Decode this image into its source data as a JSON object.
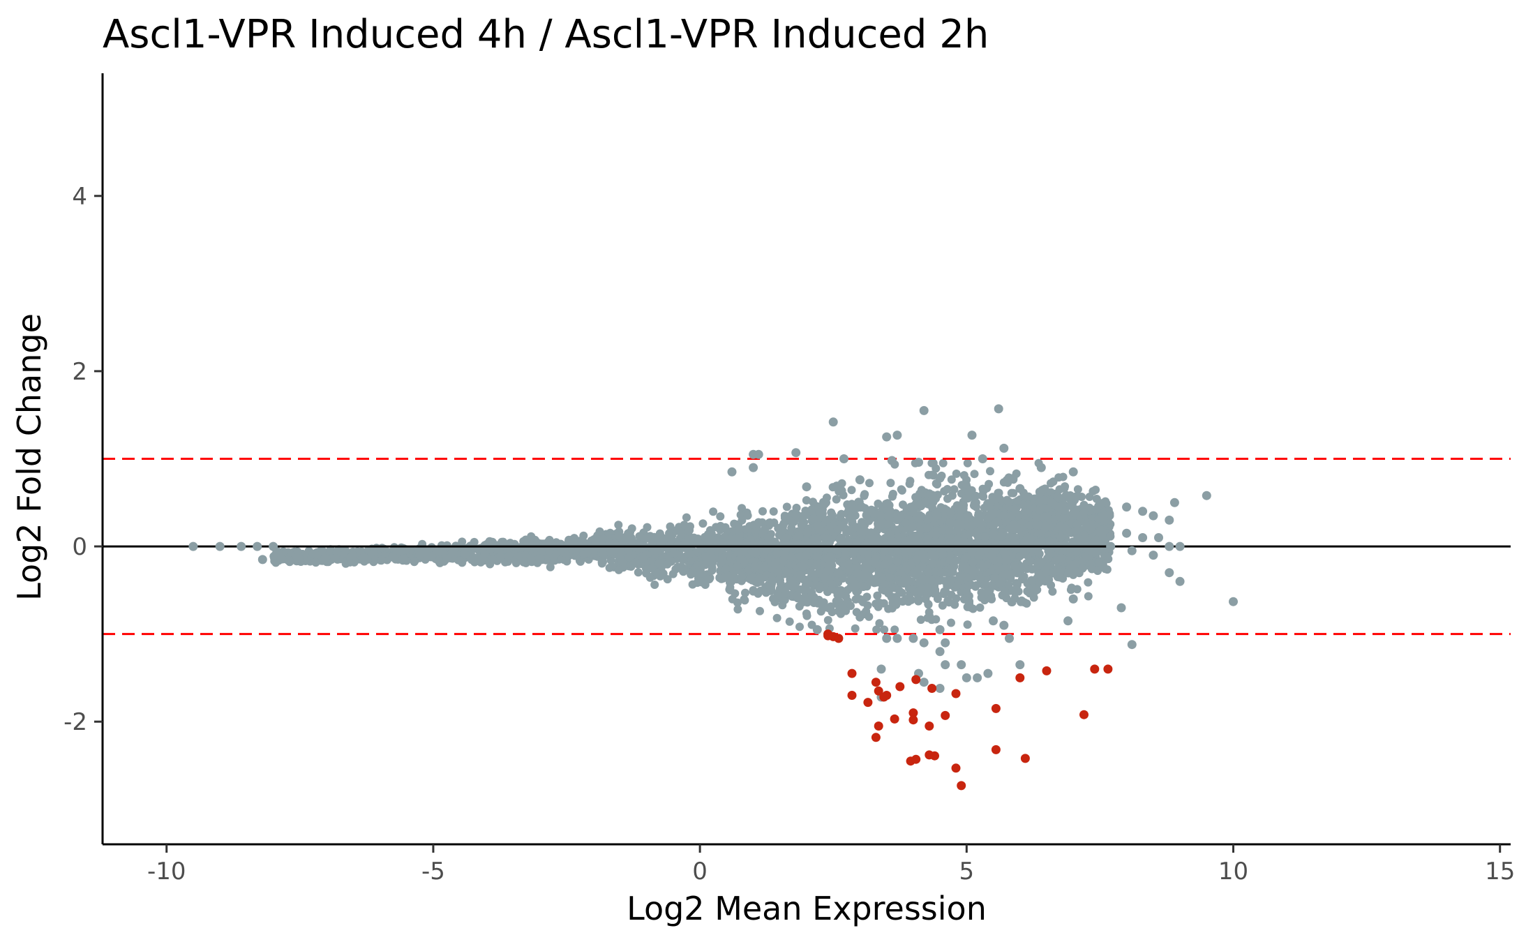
{
  "chart_data": {
    "type": "scatter",
    "title": "Ascl1-VPR Induced 4h / Ascl1-VPR Induced 2h",
    "xlabel": "Log2 Mean Expression",
    "ylabel": "Log2 Fold Change",
    "xlim": [
      -11.2,
      15.2
    ],
    "ylim": [
      -3.4,
      5.4
    ],
    "x_ticks": [
      -10,
      -5,
      0,
      5,
      10,
      15
    ],
    "x_tick_labels": [
      "-10",
      "-5",
      "0",
      "5",
      "10",
      "15"
    ],
    "y_ticks": [
      -2,
      0,
      2,
      4
    ],
    "y_tick_labels": [
      "-2",
      "0",
      "2",
      "4"
    ],
    "grid": false,
    "legend": "none",
    "colors": {
      "not_significant": "#8b9ea4",
      "significant_down": "#c8250f",
      "threshold_line": "#ff0000",
      "zero_line": "#000000"
    },
    "reference_lines": [
      {
        "y": 0,
        "style": "solid"
      },
      {
        "y": 1,
        "style": "dashed"
      },
      {
        "y": -1,
        "style": "dashed"
      }
    ],
    "series": [
      {
        "group": "not_significant",
        "points": [
          [
            -9.5,
            0.0
          ],
          [
            -9.0,
            0.0
          ],
          [
            -8.6,
            0.0
          ],
          [
            -8.3,
            0.0
          ],
          [
            -8.2,
            -0.15
          ],
          [
            -8.0,
            0.0
          ],
          [
            2.5,
            1.42
          ],
          [
            3.5,
            1.25
          ],
          [
            3.7,
            1.27
          ],
          [
            4.2,
            1.55
          ],
          [
            5.1,
            1.27
          ],
          [
            5.6,
            1.57
          ],
          [
            5.7,
            1.12
          ],
          [
            1.0,
            1.05
          ],
          [
            1.1,
            1.05
          ],
          [
            1.8,
            1.07
          ],
          [
            2.7,
            1.0
          ],
          [
            3.6,
            0.98
          ],
          [
            4.1,
            0.96
          ],
          [
            5.3,
            1.0
          ],
          [
            6.4,
            0.9
          ],
          [
            7.0,
            0.85
          ],
          [
            1.0,
            0.9
          ],
          [
            0.6,
            0.85
          ],
          [
            2.0,
            0.68
          ],
          [
            3.0,
            0.76
          ],
          [
            4.5,
            0.78
          ],
          [
            6.0,
            0.66
          ],
          [
            8.0,
            0.45
          ],
          [
            8.3,
            0.4
          ],
          [
            8.9,
            0.5
          ],
          [
            9.5,
            0.58
          ],
          [
            8.5,
            0.35
          ],
          [
            8.8,
            0.3
          ],
          [
            8.0,
            0.15
          ],
          [
            8.3,
            0.1
          ],
          [
            8.6,
            0.1
          ],
          [
            8.8,
            0.0
          ],
          [
            9.0,
            0.0
          ],
          [
            7.7,
            0.0
          ],
          [
            8.1,
            -0.05
          ],
          [
            8.5,
            -0.1
          ],
          [
            9.0,
            -0.4
          ],
          [
            8.8,
            -0.3
          ],
          [
            10.0,
            -0.63
          ],
          [
            7.9,
            -0.7
          ],
          [
            8.1,
            -1.12
          ],
          [
            6.9,
            -0.85
          ],
          [
            5.5,
            -0.85
          ],
          [
            5.7,
            -0.9
          ],
          [
            6.0,
            -1.35
          ],
          [
            5.8,
            -1.05
          ],
          [
            4.5,
            -0.95
          ],
          [
            4.6,
            -1.1
          ],
          [
            4.2,
            -1.1
          ],
          [
            4.0,
            -1.05
          ],
          [
            3.7,
            -1.05
          ],
          [
            3.5,
            -1.05
          ],
          [
            2.4,
            -1.0
          ],
          [
            2.2,
            -0.95
          ],
          [
            4.5,
            -1.2
          ],
          [
            4.6,
            -1.35
          ],
          [
            4.9,
            -1.35
          ],
          [
            3.4,
            -1.4
          ],
          [
            4.1,
            -1.45
          ],
          [
            5.0,
            -1.5
          ],
          [
            5.2,
            -1.5
          ],
          [
            5.4,
            -1.45
          ],
          [
            4.2,
            -1.55
          ],
          [
            4.5,
            -1.62
          ],
          [
            3.4,
            -1.72
          ],
          [
            7.0,
            -0.6
          ]
        ]
      },
      {
        "group": "significant_down",
        "points": [
          [
            2.4,
            -1.0
          ],
          [
            2.5,
            -1.03
          ],
          [
            2.6,
            -1.05
          ],
          [
            2.4,
            -1.02
          ],
          [
            2.85,
            -1.45
          ],
          [
            3.3,
            -1.55
          ],
          [
            3.35,
            -1.65
          ],
          [
            3.5,
            -1.7
          ],
          [
            3.75,
            -1.6
          ],
          [
            3.45,
            -1.72
          ],
          [
            4.05,
            -1.52
          ],
          [
            4.35,
            -1.62
          ],
          [
            4.8,
            -1.68
          ],
          [
            2.85,
            -1.7
          ],
          [
            3.15,
            -1.78
          ],
          [
            3.65,
            -1.97
          ],
          [
            3.35,
            -2.05
          ],
          [
            4.0,
            -1.9
          ],
          [
            4.0,
            -1.98
          ],
          [
            4.3,
            -2.05
          ],
          [
            4.6,
            -1.93
          ],
          [
            5.55,
            -1.85
          ],
          [
            6.0,
            -1.5
          ],
          [
            6.5,
            -1.42
          ],
          [
            7.4,
            -1.4
          ],
          [
            7.65,
            -1.4
          ],
          [
            7.2,
            -1.92
          ],
          [
            3.3,
            -2.18
          ],
          [
            3.95,
            -2.45
          ],
          [
            4.05,
            -2.43
          ],
          [
            4.3,
            -2.38
          ],
          [
            4.4,
            -2.39
          ],
          [
            4.8,
            -2.53
          ],
          [
            4.9,
            -2.73
          ],
          [
            5.55,
            -2.32
          ],
          [
            6.1,
            -2.42
          ]
        ]
      }
    ],
    "cloud_summary": "dense grey point cloud; near-zero fold change at low expression widening to about +/-0.8 at expression 2-6"
  }
}
